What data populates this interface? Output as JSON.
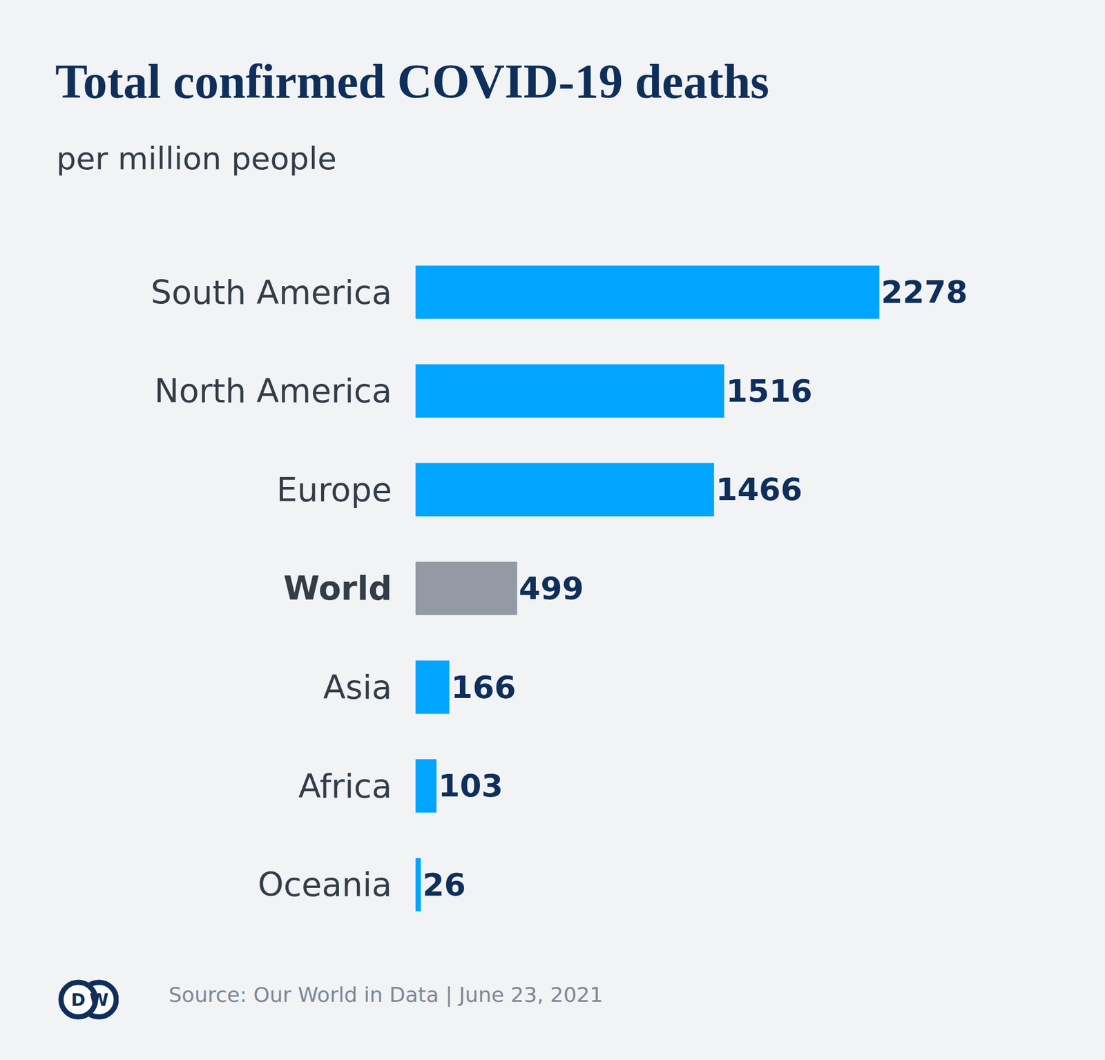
{
  "chart_data": {
    "type": "bar",
    "orientation": "horizontal",
    "title": "Total confirmed COVID-19 deaths",
    "subtitle": "per million people",
    "categories": [
      "South America",
      "North America",
      "Europe",
      "World",
      "Asia",
      "Africa",
      "Oceania"
    ],
    "values": [
      2278,
      1516,
      1466,
      499,
      166,
      103,
      26
    ],
    "colors": [
      "#00a5ff",
      "#00a5ff",
      "#00a5ff",
      "#939aa4",
      "#00a5ff",
      "#00a5ff",
      "#00a5ff"
    ],
    "xlim": [
      0,
      2278
    ],
    "data_labels": true,
    "tick_labels": "y",
    "grid": false,
    "source": "Source: Our World in Data | June 23, 2021",
    "logo": "DW"
  }
}
